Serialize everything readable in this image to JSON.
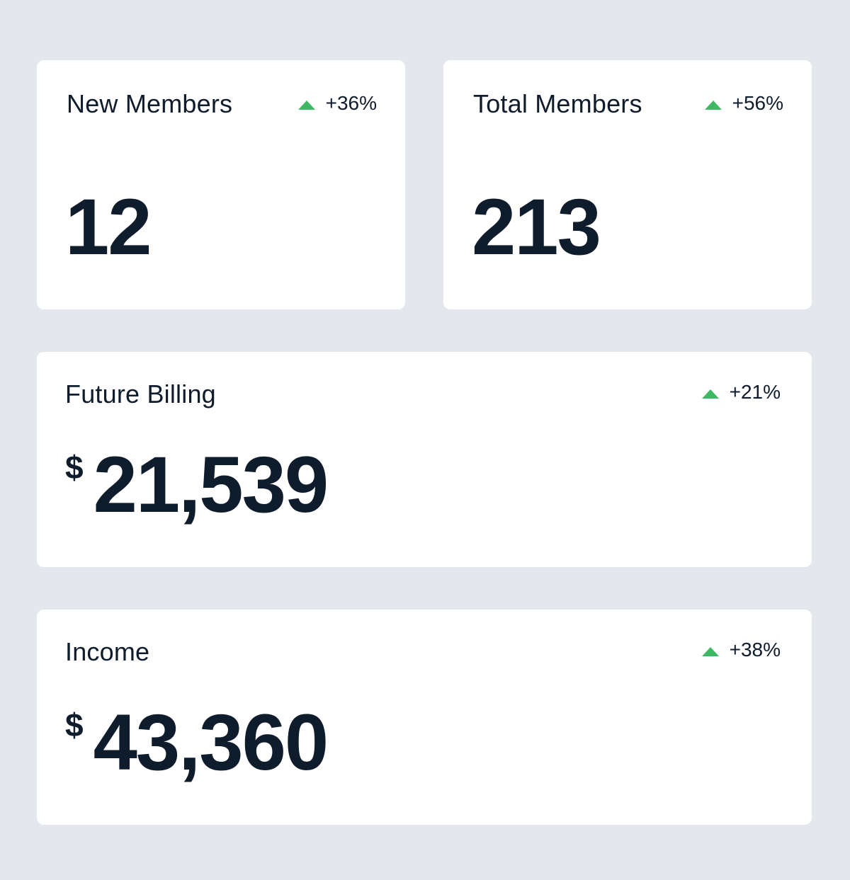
{
  "cards": [
    {
      "title": "New Members",
      "trend": "+36%",
      "trend_direction": "up",
      "value": "12"
    },
    {
      "title": "Total Members",
      "trend": "+56%",
      "trend_direction": "up",
      "value": "213"
    },
    {
      "title": "Future Billing",
      "trend": "+21%",
      "trend_direction": "up",
      "currency": "$",
      "value": "21,539"
    },
    {
      "title": "Income",
      "trend": "+38%",
      "trend_direction": "up",
      "currency": "$",
      "value": "43,360"
    }
  ],
  "colors": {
    "background": "#e4e8ec",
    "card": "#ffffff",
    "text": "#0f1c2c",
    "trend_up": "#3fb866"
  },
  "icons": {
    "trend_up": "triangle-up-icon"
  }
}
